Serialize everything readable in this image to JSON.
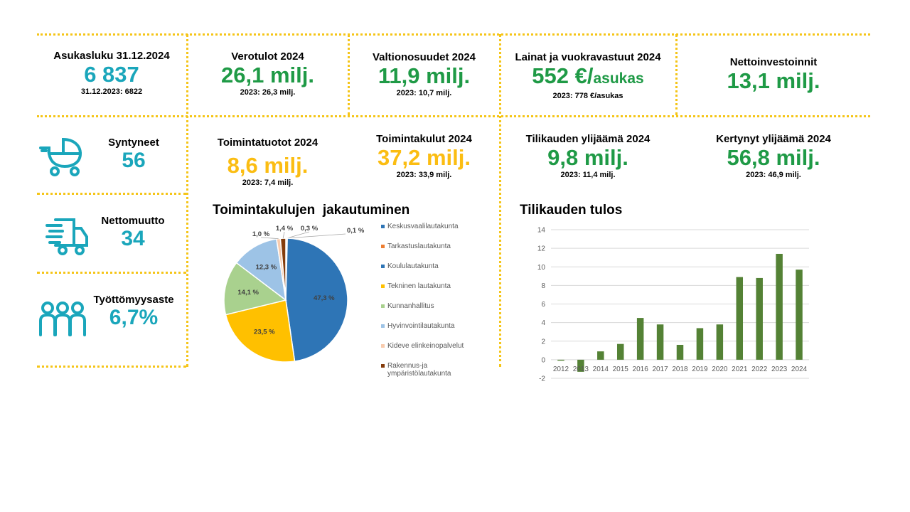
{
  "kpis": {
    "asukasluku": {
      "title": "Asukasluku 31.12.2024",
      "value": "6 837",
      "prev": "31.12.2023: 6822"
    },
    "verotulot": {
      "title": "Verotulot 2024",
      "value": "26,1 milj.",
      "prev": "2023: 26,3 milj."
    },
    "valtionosuudet": {
      "title": "Valtionosuudet 2024",
      "value": "11,9 milj.",
      "prev": "2023: 10,7 milj."
    },
    "lainat": {
      "title": "Lainat ja vuokravastuut 2024",
      "value": "552 €/",
      "unit": "asukas",
      "prev": "2023: 778 €/asukas"
    },
    "nettoinvestoinnit": {
      "title": "Nettoinvestoinnit",
      "value": "13,1 milj."
    },
    "toimintatuotot": {
      "title": "Toimintatuotot 2024",
      "value": "8,6 milj.",
      "prev": "2023: 7,4 milj."
    },
    "toimintakulut": {
      "title": "Toimintakulut 2024",
      "value": "37,2 milj.",
      "prev": "2023: 33,9 milj."
    },
    "tilikauden_ylijaama": {
      "title": "Tilikauden ylijäämä 2024",
      "value": "9,8 milj.",
      "prev": "2023: 11,4 milj."
    },
    "kertynyt_ylijaama": {
      "title": "Kertynyt ylijäämä 2024",
      "value": "56,8 milj.",
      "prev": "2023: 46,9 milj."
    }
  },
  "side": {
    "syntyneet": {
      "title": "Syntyneet",
      "value": "56",
      "icon": "baby-stroller-icon"
    },
    "nettomuutto": {
      "title": "Nettomuutto",
      "value": "34",
      "icon": "moving-truck-icon"
    },
    "tyottomyys": {
      "title": "Työttömyysaste",
      "value": "6,7%",
      "icon": "people-group-icon"
    }
  },
  "colors": {
    "teal": "#1aa6bb",
    "green": "#1f9a46",
    "yellow": "#fbbd12",
    "divider": "#f5c518",
    "bar": "#548235"
  },
  "chart_data": [
    {
      "type": "pie",
      "title": "Toimintakulujen  jakautuminen",
      "series": [
        {
          "name": "Keskusvaalilautakunta",
          "value": 0.1,
          "label": "0,1 %",
          "color": "#2e75b6"
        },
        {
          "name": "Tarkastuslautakunta",
          "value": 0.3,
          "label": "0,3 %",
          "color": "#ed7d31"
        },
        {
          "name": "Koululautakunta",
          "value": 47.3,
          "label": "47,3 %",
          "color": "#2e75b6"
        },
        {
          "name": "Tekninen lautakunta",
          "value": 23.5,
          "label": "23,5 %",
          "color": "#ffc000"
        },
        {
          "name": "Kunnanhallitus",
          "value": 14.1,
          "label": "14,1 %",
          "color": "#a9d18e"
        },
        {
          "name": "Hyvinvointilautakunta",
          "value": 12.3,
          "label": "12,3 %",
          "color": "#9dc3e6"
        },
        {
          "name": "Kideve elinkeinopalvelut",
          "value": 1.0,
          "label": "1,0 %",
          "color": "#f8cbad"
        },
        {
          "name": "Rakennus-ja ympäristölautakunta",
          "value": 1.4,
          "label": "1,4 %",
          "color": "#843c0c"
        }
      ]
    },
    {
      "type": "bar",
      "title": "Tilikauden tulos",
      "categories": [
        "2012",
        "2013",
        "2014",
        "2015",
        "2016",
        "2017",
        "2018",
        "2019",
        "2020",
        "2021",
        "2022",
        "2023",
        "2024"
      ],
      "values": [
        -0.1,
        -1.3,
        0.9,
        1.7,
        4.5,
        3.8,
        1.6,
        3.4,
        3.8,
        8.9,
        8.8,
        11.4,
        9.7
      ],
      "ylim": [
        -2,
        14
      ],
      "yticks": [
        "14",
        "12",
        "10",
        "8",
        "6",
        "4",
        "2",
        "0",
        "-2"
      ],
      "grid": true
    }
  ]
}
